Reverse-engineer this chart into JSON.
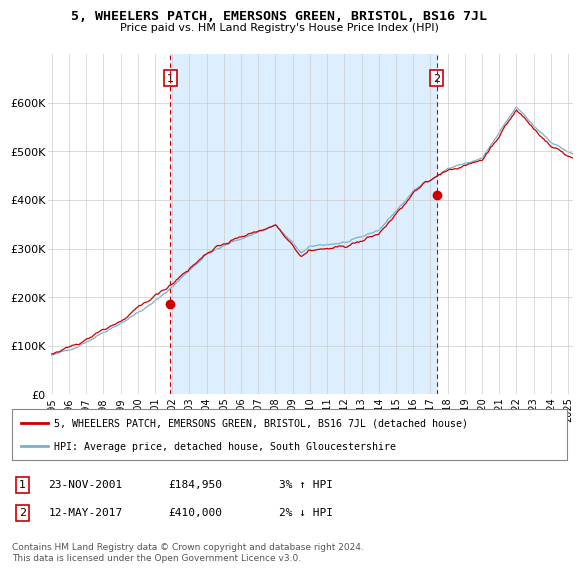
{
  "title": "5, WHEELERS PATCH, EMERSONS GREEN, BRISTOL, BS16 7JL",
  "subtitle": "Price paid vs. HM Land Registry's House Price Index (HPI)",
  "legend_line1": "5, WHEELERS PATCH, EMERSONS GREEN, BRISTOL, BS16 7JL (detached house)",
  "legend_line2": "HPI: Average price, detached house, South Gloucestershire",
  "annotation1_label": "1",
  "annotation1_date": "23-NOV-2001",
  "annotation1_price": "£184,950",
  "annotation1_hpi": "3% ↑ HPI",
  "annotation2_label": "2",
  "annotation2_date": "12-MAY-2017",
  "annotation2_price": "£410,000",
  "annotation2_hpi": "2% ↓ HPI",
  "copyright_text": "Contains HM Land Registry data © Crown copyright and database right 2024.\nThis data is licensed under the Open Government Licence v3.0.",
  "price_line_color": "#cc0000",
  "hpi_line_color": "#7ab0d4",
  "annotation_line_color": "#cc0000",
  "shade_color": "#ddeeff",
  "background_color": "#ffffff",
  "grid_color": "#cccccc",
  "ylim": [
    0,
    700000
  ],
  "yticks": [
    0,
    100000,
    200000,
    300000,
    400000,
    500000,
    600000
  ],
  "ytick_labels": [
    "£0",
    "£100K",
    "£200K",
    "£300K",
    "£400K",
    "£500K",
    "£600K"
  ],
  "sale1_x": 2001.9,
  "sale1_y": 184950,
  "sale2_x": 2017.37,
  "sale2_y": 410000,
  "xlim_left": 1994.8,
  "xlim_right": 2025.3
}
